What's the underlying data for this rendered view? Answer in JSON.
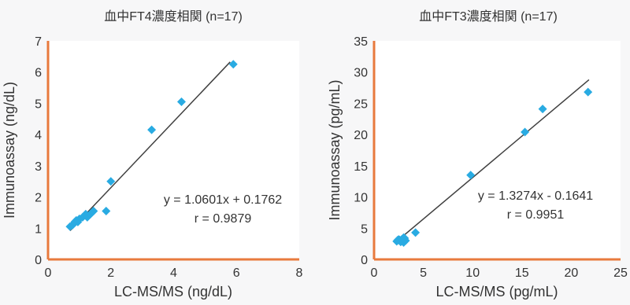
{
  "colors": {
    "plot_background": "#ffffff",
    "axis_line": "#e87a3d",
    "marker": "#29abe2",
    "fit_line": "#404040",
    "text": "#333333"
  },
  "chart_data": [
    {
      "type": "scatter",
      "title": "血中FT4濃度相関 (n=17)",
      "xlabel": "LC-MS/MS (ng/dL)",
      "ylabel": "Immunoassay (ng/dL)",
      "xlim": [
        0,
        8
      ],
      "ylim": [
        0,
        7
      ],
      "xticks": [
        "0",
        "2",
        "4",
        "6",
        "8"
      ],
      "yticks": [
        "0",
        "1",
        "2",
        "3",
        "4",
        "5",
        "6",
        "7"
      ],
      "grid": false,
      "marker": "diamond",
      "points": [
        {
          "x": 0.7,
          "y": 1.05
        },
        {
          "x": 0.78,
          "y": 1.1
        },
        {
          "x": 0.85,
          "y": 1.2
        },
        {
          "x": 0.9,
          "y": 1.25
        },
        {
          "x": 1.0,
          "y": 1.3
        },
        {
          "x": 1.1,
          "y": 1.35
        },
        {
          "x": 1.2,
          "y": 1.45
        },
        {
          "x": 1.25,
          "y": 1.35
        },
        {
          "x": 1.35,
          "y": 1.45
        },
        {
          "x": 1.45,
          "y": 1.55
        },
        {
          "x": 1.4,
          "y": 1.5
        },
        {
          "x": 1.85,
          "y": 1.55
        },
        {
          "x": 2.0,
          "y": 2.5
        },
        {
          "x": 3.3,
          "y": 4.15
        },
        {
          "x": 4.25,
          "y": 5.05
        },
        {
          "x": 5.9,
          "y": 6.25
        },
        {
          "x": 0.95,
          "y": 1.2
        }
      ],
      "fit": {
        "slope": 1.0601,
        "intercept": 0.1762,
        "x_range": [
          0.7,
          5.8
        ]
      },
      "equation": "y = 1.0601x + 0.1762",
      "r_text": "r = 0.9879"
    },
    {
      "type": "scatter",
      "title": "血中FT3濃度相関 (n=17)",
      "xlabel": "LC-MS/MS (pg/mL)",
      "ylabel": "Immunoassay (pg/mL)",
      "xlim": [
        0,
        25
      ],
      "ylim": [
        0,
        35
      ],
      "xticks": [
        "0",
        "5",
        "10",
        "15",
        "20",
        "25"
      ],
      "yticks": [
        "0",
        "5",
        "10",
        "15",
        "20",
        "25",
        "30",
        "35"
      ],
      "grid": false,
      "marker": "diamond",
      "points": [
        {
          "x": 2.3,
          "y": 2.9
        },
        {
          "x": 2.6,
          "y": 3.1
        },
        {
          "x": 2.8,
          "y": 3.0
        },
        {
          "x": 2.9,
          "y": 3.3
        },
        {
          "x": 3.0,
          "y": 2.7
        },
        {
          "x": 3.1,
          "y": 3.4
        },
        {
          "x": 2.7,
          "y": 2.8
        },
        {
          "x": 2.5,
          "y": 3.2
        },
        {
          "x": 3.2,
          "y": 3.0
        },
        {
          "x": 2.4,
          "y": 3.1
        },
        {
          "x": 3.0,
          "y": 3.5
        },
        {
          "x": 4.2,
          "y": 4.3
        },
        {
          "x": 9.8,
          "y": 13.5
        },
        {
          "x": 15.3,
          "y": 20.4
        },
        {
          "x": 17.1,
          "y": 24.1
        },
        {
          "x": 21.7,
          "y": 26.8
        },
        {
          "x": 2.8,
          "y": 3.2
        }
      ],
      "fit": {
        "slope": 1.3274,
        "intercept": -0.1641,
        "x_range": [
          2.3,
          21.8
        ]
      },
      "equation": "y = 1.3274x - 0.1641",
      "r_text": "r = 0.9951"
    }
  ]
}
